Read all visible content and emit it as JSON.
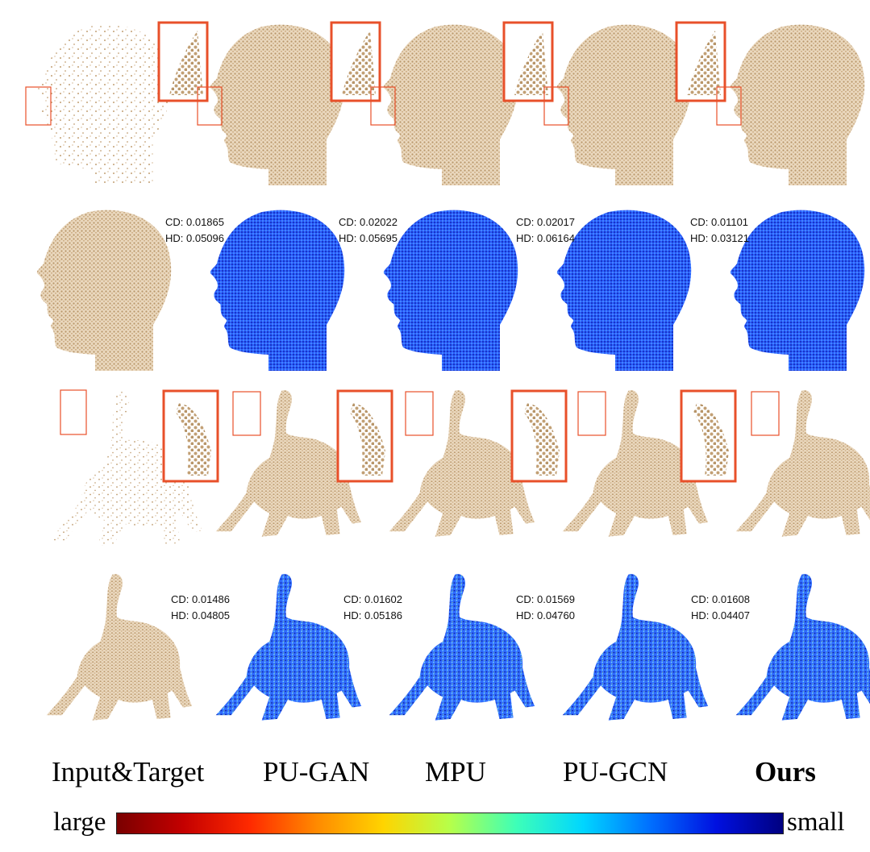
{
  "figure": {
    "columns": [
      "Input&Target",
      "PU-GAN",
      "MPU",
      "PU-GCN",
      "Ours"
    ],
    "metrics": {
      "head": [
        {
          "method": "PU-GAN",
          "cd": "CD: 0.01865",
          "hd": "HD: 0.05096"
        },
        {
          "method": "MPU",
          "cd": "CD: 0.02022",
          "hd": "HD: 0.05695"
        },
        {
          "method": "PU-GCN",
          "cd": "CD: 0.02017",
          "hd": "HD: 0.06164"
        },
        {
          "method": "Ours",
          "cd": "CD: 0.01101",
          "hd": "HD: 0.03121"
        }
      ],
      "elephant": [
        {
          "method": "PU-GAN",
          "cd": "CD: 0.01486",
          "hd": "HD: 0.04805"
        },
        {
          "method": "MPU",
          "cd": "CD: 0.01602",
          "hd": "HD: 0.05186"
        },
        {
          "method": "PU-GCN",
          "cd": "CD: 0.01569",
          "hd": "HD: 0.04760"
        },
        {
          "method": "Ours",
          "cd": "CD: 0.01608",
          "hd": "HD: 0.04407"
        }
      ]
    },
    "colorbar": {
      "left_label": "large",
      "right_label": "small",
      "colors": [
        "#7a0000",
        "#c40000",
        "#ff2a00",
        "#ff8a00",
        "#ffd400",
        "#b6ff4a",
        "#3dffb8",
        "#00d6ff",
        "#0070ff",
        "#0010e0",
        "#000080"
      ]
    },
    "point_color": "#c9a77c",
    "highlight_color": "#e8502a"
  }
}
